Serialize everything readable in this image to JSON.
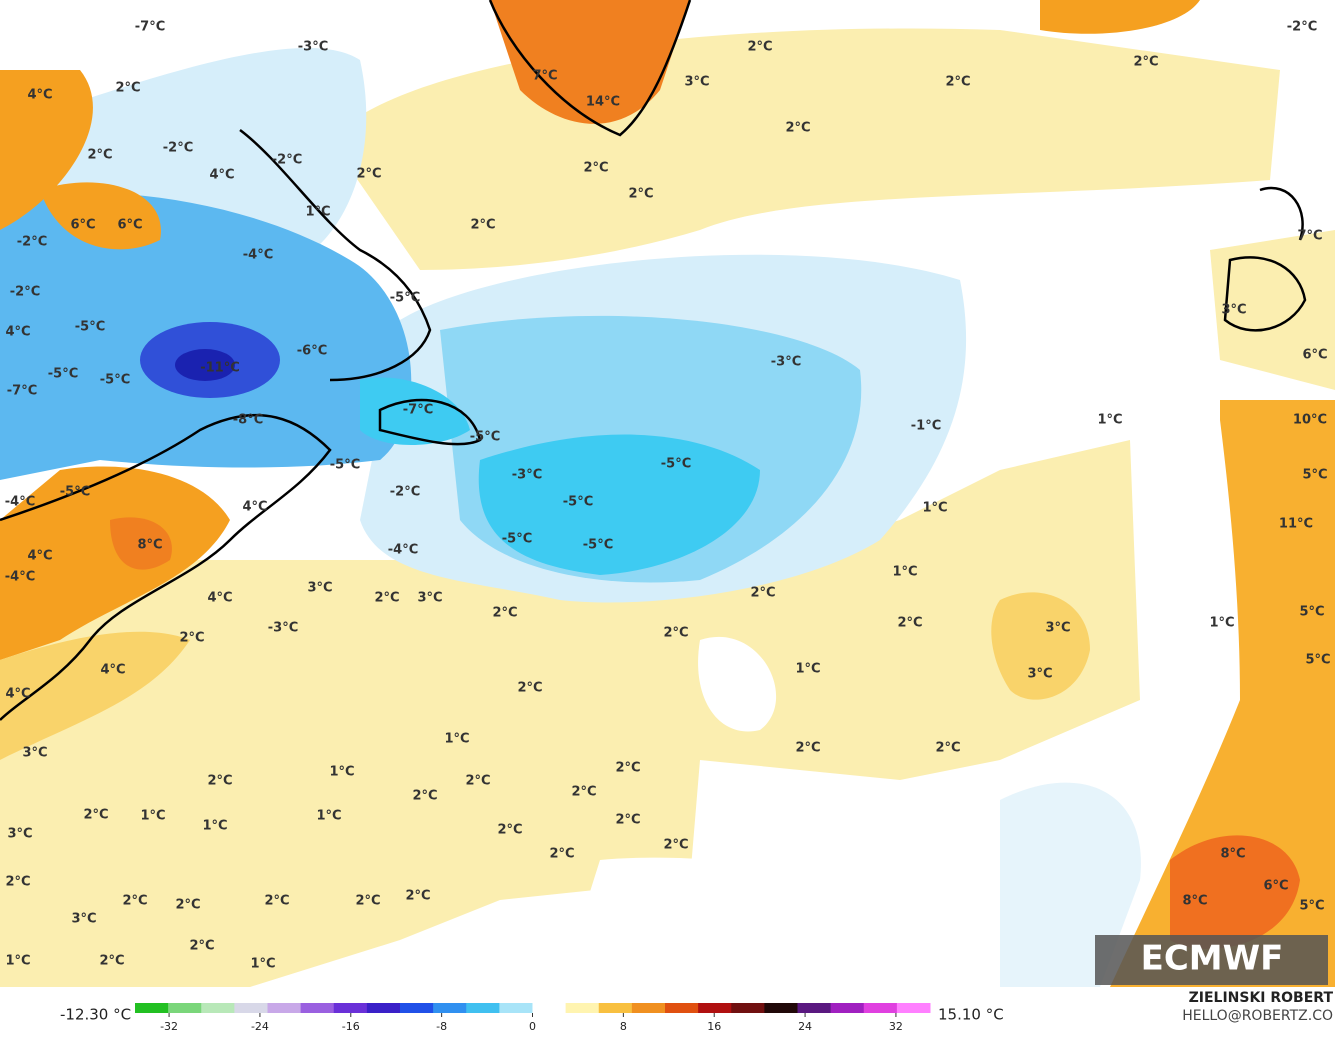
{
  "map": {
    "labels": [
      "-7°C",
      "-3°C",
      "4°C",
      "2°C",
      "2°C",
      "-2°C",
      "-2°C",
      "4°C",
      "1°C",
      "6°C",
      "6°C",
      "-2°C",
      "-4°C",
      "-2°C",
      "-5°C",
      "4°C",
      "-5°C",
      "-6°C",
      "-11°C",
      "-5°C",
      "-5°C",
      "-7°C",
      "-8°C",
      "-7°C",
      "-5°C",
      "-5°C",
      "-4°C",
      "-5°C",
      "-2°C",
      "4°C",
      "-3°C",
      "-5°C",
      "-5°C",
      "-5°C",
      "-5°C",
      "-4°C",
      "8°C",
      "4°C",
      "-4°C",
      "3°C",
      "2°C",
      "3°C",
      "4°C",
      "2°C",
      "-3°C",
      "2°C",
      "4°C",
      "4°C",
      "2°C",
      "2°C",
      "2°C",
      "1°C",
      "2°C",
      "3°C",
      "3°C",
      "1°C",
      "1°C",
      "-1°C",
      "-3°C",
      "1°C",
      "2°C",
      "2°C",
      "1°C",
      "3°C",
      "2°C",
      "1°C",
      "2°C",
      "2°C",
      "2°C",
      "2°C",
      "2°C",
      "1°C",
      "1°C",
      "1°C",
      "2°C",
      "2°C",
      "2°C",
      "2°C",
      "3°C",
      "2°C",
      "2°C",
      "2°C",
      "2°C",
      "2°C",
      "2°C",
      "3°C",
      "2°C",
      "2°C",
      "1°C",
      "1°C",
      "2°C",
      "2°C",
      "2°C",
      "3°C",
      "7°C",
      "14°C",
      "2°C",
      "2°C",
      "2°C",
      "2°C",
      "2°C",
      "-2°C",
      "7°C",
      "3°C",
      "6°C",
      "10°C",
      "5°C",
      "11°C",
      "5°C",
      "1°C",
      "5°C",
      "8°C",
      "6°C",
      "5°C",
      "8°C"
    ]
  },
  "legend": {
    "min": "-12.30 °C",
    "max": "15.10 °C",
    "ticks": [
      -32,
      -24,
      -16,
      -8,
      0,
      8,
      16,
      24,
      32
    ],
    "lim": [
      -35,
      35
    ]
  },
  "credits": {
    "logo": "ECMWF",
    "author": "ZIELINSKI ROBERT",
    "contact": "HELLO@ROBERTZ.CO"
  }
}
